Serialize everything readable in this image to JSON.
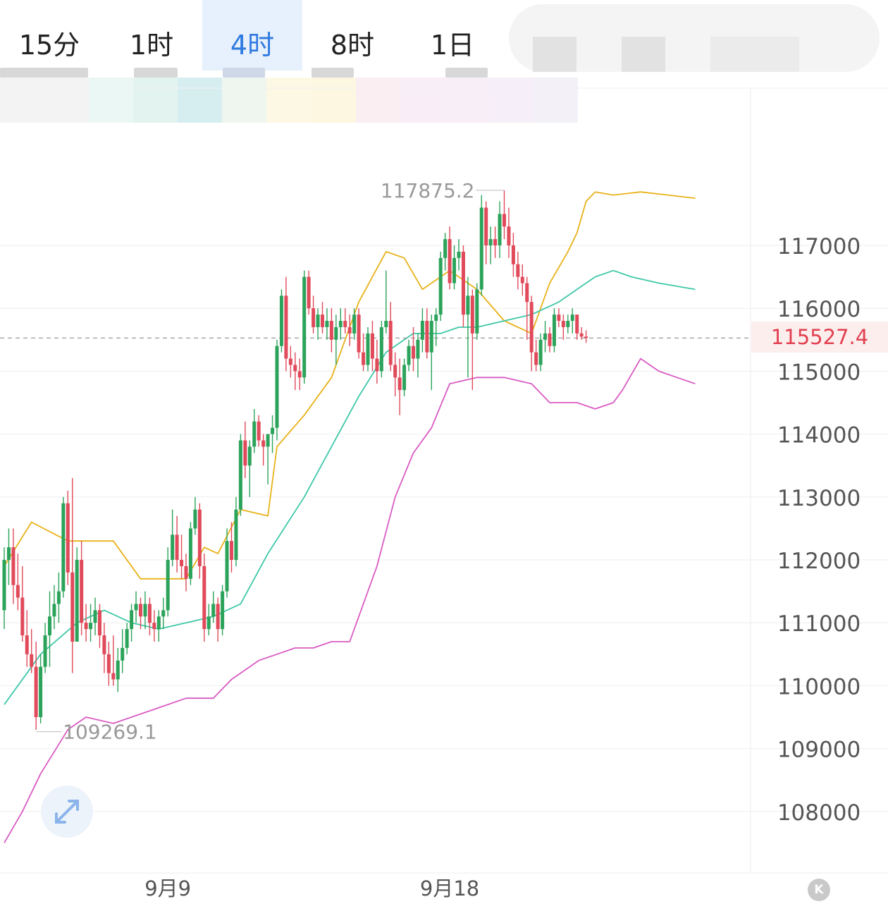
{
  "tabs": [
    {
      "label": "15分",
      "active": false
    },
    {
      "label": "1时",
      "active": false
    },
    {
      "label": "4时",
      "active": true
    },
    {
      "label": "8时",
      "active": false
    },
    {
      "label": "1日",
      "active": false
    }
  ],
  "current_price": "115527.4",
  "high_marker": "117875.2",
  "low_marker": "109269.1",
  "k_button_label": "K",
  "colors": {
    "up": "#2ca35a",
    "down": "#e04a5a",
    "upper_band": "#e8b21a",
    "middle_band": "#3fc8a8",
    "lower_band": "#d95bc3",
    "active_tab": "#2f7ae0",
    "price_tag": "#e1404f"
  },
  "icons": {
    "expand": "expand-arrows-icon",
    "kline": "k-circle-icon"
  },
  "chart_data": {
    "type": "candlestick",
    "title": "",
    "interval": "4时",
    "y_axis": {
      "ticks": [
        108000,
        109000,
        110000,
        111000,
        112000,
        113000,
        114000,
        115000,
        116000,
        117000
      ],
      "position": "right"
    },
    "ylim": [
      107300,
      118900
    ],
    "x_axis": {
      "labels": [
        {
          "text": "9月9",
          "index": 36
        },
        {
          "text": "9月18",
          "index": 98
        }
      ]
    },
    "grid": true,
    "current_price": 115527.4,
    "high": 117875.2,
    "low": 109269.1,
    "candles": [
      [
        111200,
        112200,
        110900,
        112000
      ],
      [
        112000,
        112500,
        111600,
        112200
      ],
      [
        112200,
        112500,
        111300,
        111600
      ],
      [
        111600,
        112100,
        111200,
        111400
      ],
      [
        111400,
        111900,
        110700,
        110800
      ],
      [
        110800,
        111200,
        110300,
        110500
      ],
      [
        110500,
        110900,
        110200,
        110300
      ],
      [
        110300,
        110700,
        109300,
        109500
      ],
      [
        109500,
        110500,
        109400,
        110300
      ],
      [
        110300,
        111000,
        110200,
        110800
      ],
      [
        110800,
        111500,
        110300,
        111100
      ],
      [
        111100,
        111600,
        110900,
        111300
      ],
      [
        111300,
        111800,
        111000,
        111500
      ],
      [
        111500,
        113000,
        111400,
        112900
      ],
      [
        112900,
        113100,
        111600,
        111800
      ],
      [
        111800,
        113300,
        110200,
        110700
      ],
      [
        110700,
        112200,
        110700,
        112000
      ],
      [
        112000,
        112300,
        110800,
        111000
      ],
      [
        111000,
        111300,
        110700,
        110900
      ],
      [
        110900,
        111300,
        110700,
        111000
      ],
      [
        111000,
        111400,
        110800,
        111200
      ],
      [
        111200,
        111300,
        110600,
        110800
      ],
      [
        110800,
        111000,
        110200,
        110500
      ],
      [
        110500,
        110700,
        110000,
        110200
      ],
      [
        110200,
        110800,
        110000,
        110100
      ],
      [
        110100,
        110600,
        109900,
        110400
      ],
      [
        110400,
        110900,
        110200,
        110600
      ],
      [
        110600,
        111000,
        110500,
        110900
      ],
      [
        110900,
        111300,
        110700,
        111200
      ],
      [
        111200,
        111500,
        111000,
        111300
      ],
      [
        111300,
        111400,
        110900,
        111100
      ],
      [
        111100,
        111500,
        110900,
        111300
      ],
      [
        111300,
        111400,
        110800,
        111000
      ],
      [
        111000,
        111200,
        110700,
        110900
      ],
      [
        110900,
        111200,
        110700,
        111100
      ],
      [
        111100,
        111400,
        110900,
        111200
      ],
      [
        111200,
        112200,
        111100,
        112000
      ],
      [
        112000,
        112800,
        111900,
        112400
      ],
      [
        112400,
        112700,
        111800,
        112000
      ],
      [
        112000,
        112400,
        111700,
        111900
      ],
      [
        111900,
        112100,
        111500,
        111700
      ],
      [
        111700,
        112600,
        111600,
        112500
      ],
      [
        112500,
        113000,
        112400,
        112800
      ],
      [
        112800,
        112900,
        111700,
        111900
      ],
      [
        111900,
        112100,
        110700,
        110900
      ],
      [
        110900,
        111300,
        110800,
        111100
      ],
      [
        111100,
        111500,
        111000,
        111300
      ],
      [
        111300,
        111400,
        110700,
        110900
      ],
      [
        110900,
        111600,
        110800,
        111500
      ],
      [
        111500,
        112500,
        111400,
        112300
      ],
      [
        112300,
        112600,
        111800,
        112000
      ],
      [
        112000,
        113000,
        111900,
        112800
      ],
      [
        112800,
        114000,
        112700,
        113900
      ],
      [
        113900,
        114200,
        113300,
        113500
      ],
      [
        113500,
        113900,
        113000,
        113800
      ],
      [
        113800,
        114400,
        113700,
        114200
      ],
      [
        114200,
        114300,
        113800,
        113900
      ],
      [
        113900,
        114000,
        113500,
        113800
      ],
      [
        113800,
        114000,
        113200,
        114000
      ],
      [
        114000,
        114300,
        113700,
        114100
      ],
      [
        114100,
        115500,
        113900,
        115400
      ],
      [
        115400,
        116300,
        115300,
        116200
      ],
      [
        116200,
        116500,
        115000,
        115200
      ],
      [
        115200,
        115400,
        114900,
        115100
      ],
      [
        115100,
        115300,
        114700,
        115000
      ],
      [
        115000,
        115200,
        114700,
        114900
      ],
      [
        114900,
        116600,
        114800,
        116500
      ],
      [
        116500,
        116600,
        115900,
        116000
      ],
      [
        116000,
        116200,
        115600,
        115700
      ],
      [
        115700,
        116000,
        115500,
        115900
      ],
      [
        115900,
        116100,
        115600,
        115700
      ],
      [
        115700,
        116000,
        115500,
        115800
      ],
      [
        115800,
        116000,
        115300,
        115500
      ],
      [
        115500,
        115900,
        115100,
        115700
      ],
      [
        115700,
        116000,
        115500,
        115800
      ],
      [
        115800,
        116000,
        115600,
        115700
      ],
      [
        115700,
        115900,
        115400,
        115600
      ],
      [
        115600,
        116000,
        115500,
        115900
      ],
      [
        115900,
        116000,
        115200,
        115300
      ],
      [
        115300,
        115600,
        115000,
        115100
      ],
      [
        115100,
        115700,
        115000,
        115600
      ],
      [
        115600,
        115800,
        115000,
        115200
      ],
      [
        115200,
        115500,
        114800,
        115000
      ],
      [
        115000,
        115800,
        114900,
        115700
      ],
      [
        115700,
        116600,
        115600,
        115800
      ],
      [
        115800,
        116100,
        115000,
        115100
      ],
      [
        115100,
        115300,
        114600,
        114900
      ],
      [
        114900,
        115200,
        114300,
        114700
      ],
      [
        114700,
        115200,
        114600,
        115100
      ],
      [
        115100,
        115500,
        115000,
        115400
      ],
      [
        115400,
        115700,
        115000,
        115200
      ],
      [
        115200,
        115600,
        114900,
        115500
      ],
      [
        115500,
        116000,
        115300,
        115800
      ],
      [
        115800,
        116000,
        115200,
        115300
      ],
      [
        115300,
        115900,
        114700,
        115800
      ],
      [
        115800,
        116000,
        115400,
        115900
      ],
      [
        115900,
        116900,
        115800,
        116800
      ],
      [
        116800,
        117200,
        116600,
        117100
      ],
      [
        117100,
        117300,
        116300,
        116400
      ],
      [
        116400,
        117000,
        116300,
        116800
      ],
      [
        116800,
        117100,
        116600,
        116900
      ],
      [
        116900,
        117000,
        115700,
        115900
      ],
      [
        115900,
        116500,
        114900,
        116200
      ],
      [
        116200,
        116300,
        114700,
        115600
      ],
      [
        115600,
        116400,
        115500,
        116300
      ],
      [
        116300,
        117800,
        116200,
        117600
      ],
      [
        117600,
        117700,
        116700,
        117000
      ],
      [
        117000,
        117300,
        116700,
        117100
      ],
      [
        117100,
        117300,
        116800,
        117000
      ],
      [
        117000,
        117700,
        116800,
        117500
      ],
      [
        117500,
        117875,
        117100,
        117300
      ],
      [
        117300,
        117600,
        116800,
        117000
      ],
      [
        117000,
        117200,
        116500,
        116700
      ],
      [
        116700,
        116900,
        116300,
        116500
      ],
      [
        116500,
        116700,
        116200,
        116400
      ],
      [
        116400,
        116500,
        115500,
        116100
      ],
      [
        116100,
        116200,
        115000,
        115300
      ],
      [
        115300,
        115500,
        115000,
        115100
      ],
      [
        115100,
        115600,
        115000,
        115500
      ],
      [
        115500,
        115800,
        115300,
        115600
      ],
      [
        115600,
        115700,
        115300,
        115400
      ],
      [
        115400,
        116000,
        115300,
        115900
      ],
      [
        115900,
        116000,
        115700,
        115800
      ],
      [
        115800,
        115900,
        115500,
        115700
      ],
      [
        115700,
        115900,
        115600,
        115800
      ],
      [
        115800,
        116000,
        115600,
        115900
      ],
      [
        115900,
        115900,
        115500,
        115600
      ],
      [
        115600,
        115700,
        115500,
        115550
      ],
      [
        115550,
        115650,
        115450,
        115527.4
      ]
    ],
    "series": [
      {
        "name": "",
        "line": "upper",
        "values": [
          [
            0,
            111900
          ],
          [
            6,
            112600
          ],
          [
            14,
            112300
          ],
          [
            24,
            112300
          ],
          [
            30,
            111700
          ],
          [
            36,
            111700
          ],
          [
            40,
            111700
          ],
          [
            44,
            112200
          ],
          [
            47,
            112100
          ],
          [
            52,
            112800
          ],
          [
            58,
            112700
          ],
          [
            60,
            113800
          ],
          [
            66,
            114300
          ],
          [
            72,
            114900
          ],
          [
            78,
            116100
          ],
          [
            84,
            116900
          ],
          [
            88,
            116800
          ],
          [
            92,
            116300
          ],
          [
            98,
            116600
          ],
          [
            104,
            116300
          ],
          [
            110,
            115800
          ],
          [
            116,
            115600
          ],
          [
            120,
            116400
          ],
          [
            124,
            116900
          ],
          [
            126,
            117200
          ],
          [
            128,
            117700
          ],
          [
            130,
            117850
          ],
          [
            134,
            117800
          ],
          [
            140,
            117850
          ],
          [
            146,
            117800
          ],
          [
            152,
            117750
          ]
        ]
      },
      {
        "name": "",
        "line": "middle",
        "values": [
          [
            0,
            109700
          ],
          [
            8,
            110500
          ],
          [
            16,
            111000
          ],
          [
            22,
            111200
          ],
          [
            28,
            111000
          ],
          [
            34,
            110900
          ],
          [
            40,
            111000
          ],
          [
            46,
            111100
          ],
          [
            52,
            111300
          ],
          [
            58,
            112100
          ],
          [
            66,
            113000
          ],
          [
            72,
            113800
          ],
          [
            78,
            114600
          ],
          [
            84,
            115300
          ],
          [
            90,
            115600
          ],
          [
            96,
            115600
          ],
          [
            100,
            115700
          ],
          [
            104,
            115700
          ],
          [
            110,
            115800
          ],
          [
            116,
            115900
          ],
          [
            122,
            116100
          ],
          [
            126,
            116300
          ],
          [
            130,
            116500
          ],
          [
            134,
            116600
          ],
          [
            138,
            116500
          ],
          [
            144,
            116400
          ],
          [
            152,
            116300
          ]
        ]
      },
      {
        "name": "",
        "line": "lower",
        "values": [
          [
            0,
            107500
          ],
          [
            4,
            108000
          ],
          [
            8,
            108600
          ],
          [
            14,
            109300
          ],
          [
            18,
            109500
          ],
          [
            24,
            109400
          ],
          [
            32,
            109600
          ],
          [
            40,
            109800
          ],
          [
            46,
            109800
          ],
          [
            50,
            110100
          ],
          [
            56,
            110400
          ],
          [
            60,
            110500
          ],
          [
            64,
            110600
          ],
          [
            68,
            110600
          ],
          [
            72,
            110700
          ],
          [
            76,
            110700
          ],
          [
            82,
            111900
          ],
          [
            86,
            113000
          ],
          [
            90,
            113700
          ],
          [
            94,
            114100
          ],
          [
            98,
            114800
          ],
          [
            104,
            114900
          ],
          [
            110,
            114900
          ],
          [
            116,
            114800
          ],
          [
            120,
            114500
          ],
          [
            126,
            114500
          ],
          [
            130,
            114400
          ],
          [
            134,
            114500
          ],
          [
            136,
            114700
          ],
          [
            140,
            115200
          ],
          [
            144,
            115000
          ],
          [
            148,
            114900
          ],
          [
            152,
            114800
          ]
        ]
      }
    ]
  }
}
